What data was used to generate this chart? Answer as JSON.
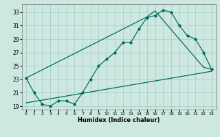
{
  "xlabel": "Humidex (Indice chaleur)",
  "bg_color": "#cce8e0",
  "grid_color": "#aacfc8",
  "line_color": "#006b5e",
  "xlim": [
    -0.5,
    23.5
  ],
  "ylim": [
    18.5,
    34.2
  ],
  "xticks": [
    0,
    1,
    2,
    3,
    4,
    5,
    6,
    7,
    8,
    9,
    10,
    11,
    12,
    13,
    14,
    15,
    16,
    17,
    18,
    19,
    20,
    21,
    22,
    23
  ],
  "yticks": [
    19,
    21,
    23,
    25,
    27,
    29,
    31,
    33
  ],
  "line1_x": [
    0,
    1,
    2,
    3,
    4,
    5,
    6,
    7,
    8,
    9,
    10,
    11,
    12,
    13,
    14,
    15,
    16,
    17,
    18,
    19,
    20,
    21,
    22,
    23
  ],
  "line1_y": [
    23.2,
    21.0,
    19.3,
    19.0,
    19.8,
    19.8,
    19.3,
    21.0,
    23.0,
    25.0,
    26.0,
    27.0,
    28.5,
    28.5,
    30.5,
    32.2,
    32.5,
    33.3,
    33.0,
    31.0,
    29.5,
    29.0,
    27.0,
    24.5
  ],
  "line2_x": [
    0,
    15,
    16,
    22,
    23
  ],
  "line2_y": [
    23.2,
    32.3,
    33.2,
    24.8,
    24.5
  ],
  "line3_x": [
    0,
    23
  ],
  "line3_y": [
    19.5,
    24.2
  ]
}
